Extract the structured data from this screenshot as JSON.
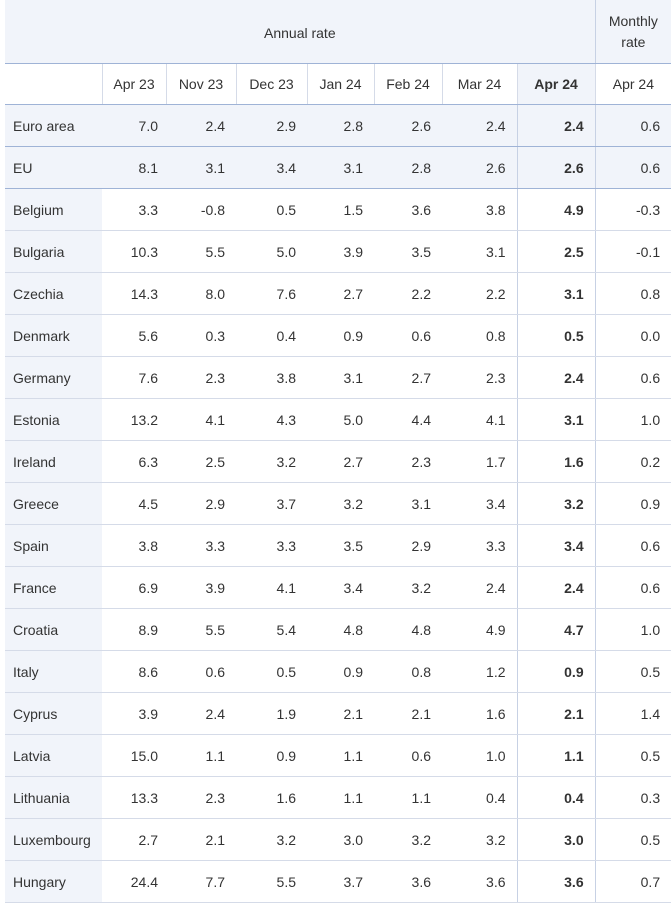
{
  "header": {
    "annual_label": "Annual rate",
    "monthly_label_line1": "Monthly",
    "monthly_label_line2": "rate",
    "columns": [
      "Apr 23",
      "Nov 23",
      "Dec 23",
      "Jan 24",
      "Feb 24",
      "Mar 24",
      "Apr 24",
      "Apr 24"
    ]
  },
  "rows": [
    {
      "name": "Euro area",
      "values": [
        "7.0",
        "2.4",
        "2.9",
        "2.8",
        "2.6",
        "2.4",
        "2.4",
        "0.6"
      ]
    },
    {
      "name": "EU",
      "values": [
        "8.1",
        "3.1",
        "3.4",
        "3.1",
        "2.8",
        "2.6",
        "2.6",
        "0.6"
      ]
    },
    {
      "name": "Belgium",
      "values": [
        "3.3",
        "-0.8",
        "0.5",
        "1.5",
        "3.6",
        "3.8",
        "4.9",
        "-0.3"
      ]
    },
    {
      "name": "Bulgaria",
      "values": [
        "10.3",
        "5.5",
        "5.0",
        "3.9",
        "3.5",
        "3.1",
        "2.5",
        "-0.1"
      ]
    },
    {
      "name": "Czechia",
      "values": [
        "14.3",
        "8.0",
        "7.6",
        "2.7",
        "2.2",
        "2.2",
        "3.1",
        "0.8"
      ]
    },
    {
      "name": "Denmark",
      "values": [
        "5.6",
        "0.3",
        "0.4",
        "0.9",
        "0.6",
        "0.8",
        "0.5",
        "0.0"
      ]
    },
    {
      "name": "Germany",
      "values": [
        "7.6",
        "2.3",
        "3.8",
        "3.1",
        "2.7",
        "2.3",
        "2.4",
        "0.6"
      ]
    },
    {
      "name": "Estonia",
      "values": [
        "13.2",
        "4.1",
        "4.3",
        "5.0",
        "4.4",
        "4.1",
        "3.1",
        "1.0"
      ]
    },
    {
      "name": "Ireland",
      "values": [
        "6.3",
        "2.5",
        "3.2",
        "2.7",
        "2.3",
        "1.7",
        "1.6",
        "0.2"
      ]
    },
    {
      "name": "Greece",
      "values": [
        "4.5",
        "2.9",
        "3.7",
        "3.2",
        "3.1",
        "3.4",
        "3.2",
        "0.9"
      ]
    },
    {
      "name": "Spain",
      "values": [
        "3.8",
        "3.3",
        "3.3",
        "3.5",
        "2.9",
        "3.3",
        "3.4",
        "0.6"
      ]
    },
    {
      "name": "France",
      "values": [
        "6.9",
        "3.9",
        "4.1",
        "3.4",
        "3.2",
        "2.4",
        "2.4",
        "0.6"
      ]
    },
    {
      "name": "Croatia",
      "values": [
        "8.9",
        "5.5",
        "5.4",
        "4.8",
        "4.8",
        "4.9",
        "4.7",
        "1.0"
      ]
    },
    {
      "name": "Italy",
      "values": [
        "8.6",
        "0.6",
        "0.5",
        "0.9",
        "0.8",
        "1.2",
        "0.9",
        "0.5"
      ]
    },
    {
      "name": "Cyprus",
      "values": [
        "3.9",
        "2.4",
        "1.9",
        "2.1",
        "2.1",
        "1.6",
        "2.1",
        "1.4"
      ]
    },
    {
      "name": "Latvia",
      "values": [
        "15.0",
        "1.1",
        "0.9",
        "1.1",
        "0.6",
        "1.0",
        "1.1",
        "0.5"
      ]
    },
    {
      "name": "Lithuania",
      "values": [
        "13.3",
        "2.3",
        "1.6",
        "1.1",
        "1.1",
        "0.4",
        "0.4",
        "0.3"
      ]
    },
    {
      "name": "Luxembourg",
      "values": [
        "2.7",
        "2.1",
        "3.2",
        "3.0",
        "3.2",
        "3.2",
        "3.0",
        "0.5"
      ]
    },
    {
      "name": "Hungary",
      "values": [
        "24.4",
        "7.7",
        "5.5",
        "3.7",
        "3.6",
        "3.6",
        "3.6",
        "0.7"
      ]
    }
  ]
}
